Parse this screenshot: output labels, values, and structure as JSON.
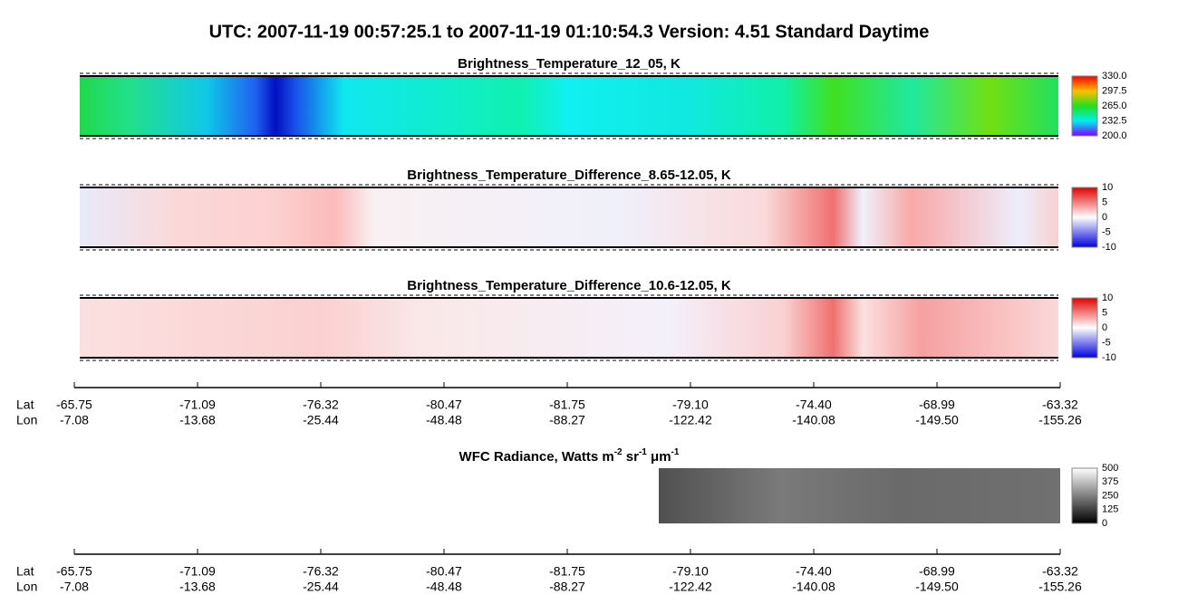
{
  "title": "UTC:  2007-11-19   00:57:25.1  to  2007-11-19   01:10:54.3    Version: 4.51  Standard Daytime",
  "panels": [
    {
      "title": "Brightness_Temperature_12_05, K",
      "colorbar": [
        "330.0",
        "297.5",
        "265.0",
        "232.5",
        "200.0"
      ]
    },
    {
      "title": "Brightness_Temperature_Difference_8.65-12.05, K",
      "colorbar": [
        "10",
        "5",
        "0",
        "-5",
        "-10"
      ]
    },
    {
      "title": "Brightness_Temperature_Difference_10.6-12.05, K",
      "colorbar": [
        "10",
        "5",
        "0",
        "-5",
        "-10"
      ]
    }
  ],
  "wfc": {
    "title_parts": [
      {
        "text": "WFC Radiance, Watts m"
      },
      {
        "text": "-2",
        "sup": true
      },
      {
        "text": " sr"
      },
      {
        "text": "-1",
        "sup": true
      },
      {
        "text": " μm"
      },
      {
        "text": "-1",
        "sup": true
      }
    ],
    "colorbar": [
      "500",
      "375",
      "250",
      "125",
      "0"
    ]
  },
  "axes": [
    {
      "lat_label": "Lat",
      "lon_label": "Lon",
      "lat": [
        "-65.75",
        "-71.09",
        "-76.32",
        "-80.47",
        "-81.75",
        "-79.10",
        "-74.40",
        "-68.99",
        "-63.32"
      ],
      "lon": [
        "-7.08",
        "-13.68",
        "-25.44",
        "-48.48",
        "-88.27",
        "-122.42",
        "-140.08",
        "-149.50",
        "-155.26"
      ]
    },
    {
      "lat_label": "Lat",
      "lon_label": "Lon",
      "lat": [
        "-65.75",
        "-71.09",
        "-76.32",
        "-80.47",
        "-81.75",
        "-79.10",
        "-74.40",
        "-68.99",
        "-63.32"
      ],
      "lon": [
        "-7.08",
        "-13.68",
        "-25.44",
        "-48.48",
        "-88.27",
        "-122.42",
        "-140.08",
        "-149.50",
        "-155.26"
      ]
    }
  ]
}
